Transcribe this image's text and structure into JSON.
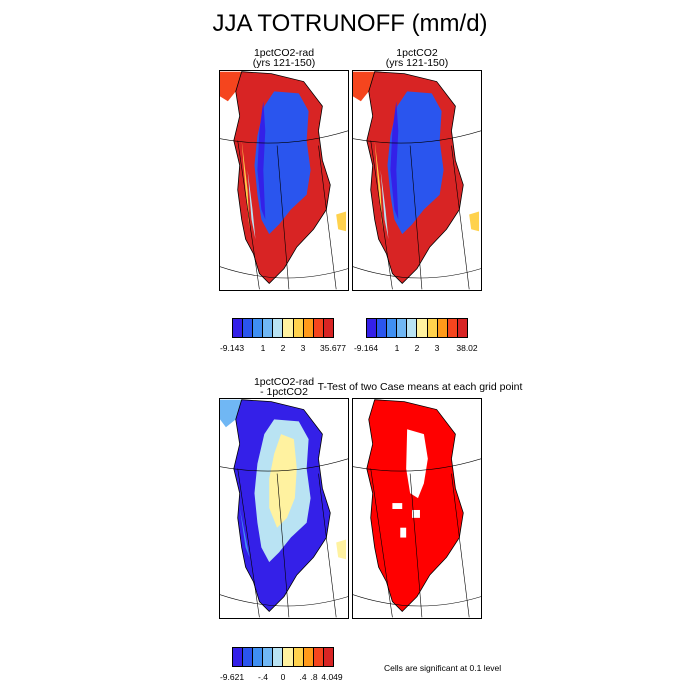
{
  "figure": {
    "title": "JJA TOTRUNOFF (mm/d)",
    "note": "Cells are significant at 0.1 level"
  },
  "palette": {
    "diverging": [
      "#3420e8",
      "#2a55ee",
      "#3f8ff2",
      "#70b7f4",
      "#b9e3f3",
      "#fff2a0",
      "#ffd24d",
      "#ff9a1a",
      "#f5451e",
      "#d82424"
    ],
    "significance": "#ff0000"
  },
  "chart_data": [
    {
      "type": "heatmap",
      "title_line1": "1pctCO2-rad",
      "title_line2": "(yrs 121-150)",
      "colorbar": {
        "min_label": "-9.143",
        "ticks": [
          "1",
          "2",
          "3"
        ],
        "max_label": "35.677"
      }
    },
    {
      "type": "heatmap",
      "title_line1": "1pctCO2",
      "title_line2": "(yrs 121-150)",
      "colorbar": {
        "min_label": "-9.164",
        "ticks": [
          "1",
          "2",
          "3"
        ],
        "max_label": "38.02"
      }
    },
    {
      "type": "heatmap",
      "title_line1": "1pctCO2-rad",
      "title_line2": "- 1pctCO2",
      "colorbar": {
        "min_label": "-9.621",
        "ticks": [
          "-.4",
          "0",
          ".4",
          ".8"
        ],
        "max_label": "4.049"
      }
    },
    {
      "type": "heatmap",
      "title_line1": "T-Test of two Case means at each grid point",
      "title_line2": ""
    }
  ]
}
